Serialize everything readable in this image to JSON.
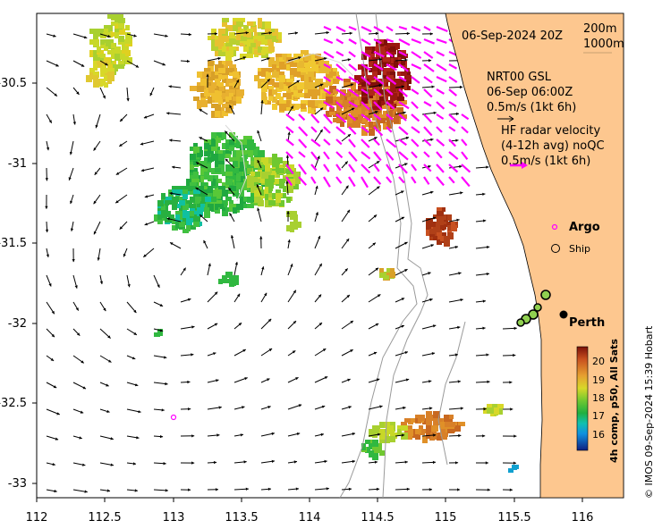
{
  "map": {
    "timestamp": "06-Sep-2024 20Z",
    "isobath_legend": [
      "200m",
      "1000m"
    ],
    "gsl_title": "NRT00 GSL",
    "gsl_time": "06-Sep 06:00Z",
    "gsl_scale": "0.5m/s (1kt 6h)",
    "hf_title": "HF radar velocity",
    "hf_sub": "(4-12h avg) noQC",
    "hf_scale": "0.5m/s (1kt 6h)",
    "argo_label": "Argo",
    "ship_label": "Ship",
    "city_label": "Perth",
    "colorbar_title": "4h comp, p50, All Sats",
    "colorbar_ticks": [
      "20",
      "19",
      "18",
      "17",
      "16"
    ],
    "credit": "© IMOS 09-Sep-2024 15:39 Hobart",
    "x_ticks": [
      "112",
      "112.5",
      "113",
      "113.5",
      "114",
      "114.5",
      "115",
      "115.5",
      "116"
    ],
    "y_ticks": [
      "-30.5",
      "-31",
      "-31.5",
      "-32",
      "-32.5",
      "-33"
    ],
    "colors": {
      "land": "#fdc78f",
      "hf_arrow": "#ff00ff",
      "argo": "#ff00ff",
      "coast": "#a0a0a0"
    }
  }
}
